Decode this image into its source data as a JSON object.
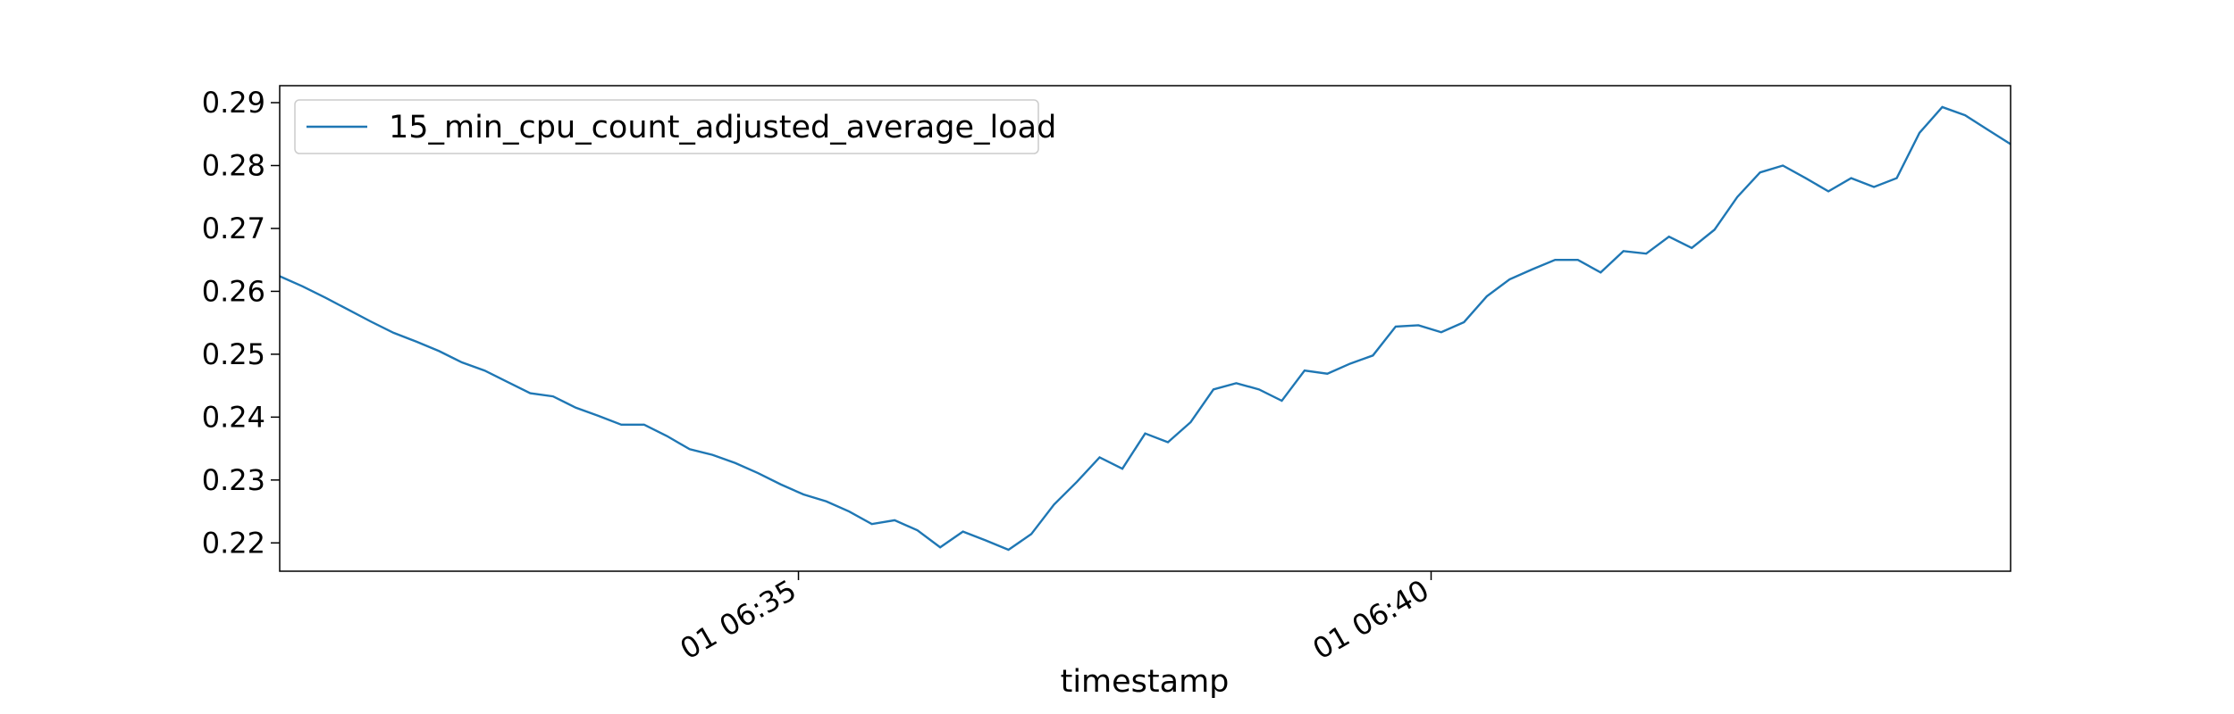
{
  "chart_data": {
    "type": "line",
    "x_label": "timestamp",
    "x": [
      30.9,
      31.08,
      31.26,
      31.44,
      31.62,
      31.8,
      31.98,
      32.16,
      32.34,
      32.52,
      32.7,
      32.88,
      33.06,
      33.24,
      33.42,
      33.6,
      33.78,
      33.96,
      34.14,
      34.32,
      34.5,
      34.68,
      34.86,
      35.04,
      35.22,
      35.4,
      35.58,
      35.76,
      35.94,
      36.12,
      36.3,
      36.48,
      36.66,
      36.84,
      37.02,
      37.2,
      37.38,
      37.56,
      37.74,
      37.92,
      38.1,
      38.28,
      38.46,
      38.64,
      38.82,
      39.0,
      39.18,
      39.36,
      39.54,
      39.72,
      39.9,
      40.08,
      40.26,
      40.44,
      40.62,
      40.8,
      40.98,
      41.16,
      41.34,
      41.52,
      41.7,
      41.88,
      42.06,
      42.24,
      42.42,
      42.6,
      42.78,
      42.96,
      43.14,
      43.32,
      43.5,
      43.68,
      43.86,
      44.04,
      44.22,
      44.4,
      44.58
    ],
    "series": [
      {
        "name": "15_min_cpu_count_adjusted_average_load",
        "color": "#1f77b4",
        "values": [
          0.2624,
          0.2608,
          0.259,
          0.2571,
          0.2552,
          0.2534,
          0.252,
          0.2505,
          0.2487,
          0.2474,
          0.2456,
          0.2438,
          0.2433,
          0.2415,
          0.2402,
          0.2388,
          0.2388,
          0.237,
          0.2349,
          0.234,
          0.2327,
          0.2311,
          0.2293,
          0.2277,
          0.2266,
          0.225,
          0.223,
          0.2236,
          0.222,
          0.2193,
          0.2218,
          0.2204,
          0.2189,
          0.2214,
          0.2261,
          0.2297,
          0.2336,
          0.2318,
          0.2374,
          0.236,
          0.2392,
          0.2444,
          0.2454,
          0.2444,
          0.2426,
          0.2474,
          0.2469,
          0.2485,
          0.2498,
          0.2544,
          0.2546,
          0.2535,
          0.2551,
          0.2592,
          0.2619,
          0.2635,
          0.265,
          0.265,
          0.263,
          0.2664,
          0.266,
          0.2687,
          0.2669,
          0.2698,
          0.275,
          0.2789,
          0.28,
          0.278,
          0.2759,
          0.278,
          0.2766,
          0.278,
          0.2852,
          0.2893,
          0.288,
          0.2857,
          0.2834
        ]
      }
    ],
    "xlim": [
      30.9,
      44.58
    ],
    "xticks": [
      {
        "value": 35,
        "label": "01 06:35"
      },
      {
        "value": 40,
        "label": "01 06:40"
      }
    ],
    "ylim": [
      0.2155,
      0.2927
    ],
    "yticks": [
      0.22,
      0.23,
      0.24,
      0.25,
      0.26,
      0.27,
      0.28,
      0.29
    ],
    "grid": false,
    "legend": "upper left"
  }
}
